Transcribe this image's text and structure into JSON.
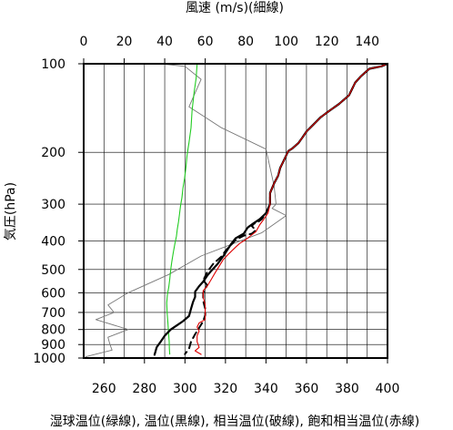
{
  "chart_data": {
    "type": "line",
    "title": "",
    "top_axis": {
      "label": "風速 (m/s)(細線)",
      "ticks": [
        0,
        20,
        40,
        60,
        80,
        100,
        120,
        140
      ],
      "range": [
        0,
        150
      ]
    },
    "bottom_axis": {
      "label": "湿球温位(緑線), 温位(黒線), 相当温位(破線), 飽和相当温位(赤線)",
      "ticks": [
        260,
        280,
        300,
        320,
        340,
        360,
        380,
        400
      ],
      "range": [
        250,
        400
      ]
    },
    "y_axis": {
      "label": "気圧(hPa)",
      "scale": "log",
      "reversed": true,
      "range": [
        100,
        1000
      ],
      "ticks": [
        100,
        200,
        300,
        400,
        500,
        600,
        700,
        800,
        900,
        1000
      ]
    },
    "grid": true,
    "colors": {
      "wind": "#777777",
      "wet_bulb": "#22cc22",
      "potential": "#000000",
      "equivalent": "#000000",
      "saturated": "#dd0000"
    },
    "series": [
      {
        "key": "wind",
        "axis": "top",
        "style": "thin",
        "points": [
          [
            38,
            100
          ],
          [
            50,
            102
          ],
          [
            58,
            113
          ],
          [
            52,
            140
          ],
          [
            68,
            165
          ],
          [
            90,
            195
          ],
          [
            94,
            260
          ],
          [
            95,
            300
          ],
          [
            93,
            310
          ],
          [
            100,
            328
          ],
          [
            88,
            375
          ],
          [
            58,
            450
          ],
          [
            42,
            520
          ],
          [
            22,
            600
          ],
          [
            12,
            660
          ],
          [
            15,
            700
          ],
          [
            6,
            740
          ],
          [
            22,
            800
          ],
          [
            12,
            850
          ],
          [
            13,
            900
          ],
          [
            14,
            940
          ],
          [
            1,
            990
          ]
        ]
      },
      {
        "key": "wet_bulb",
        "axis": "bottom",
        "style": "solid",
        "points": [
          [
            306,
            100
          ],
          [
            305.5,
            112
          ],
          [
            304.5,
            125
          ],
          [
            303.5,
            145
          ],
          [
            303,
            165
          ],
          [
            302,
            185
          ],
          [
            301,
            205
          ],
          [
            300.5,
            225
          ],
          [
            299.8,
            245
          ],
          [
            299,
            265
          ],
          [
            298.5,
            285
          ],
          [
            297.8,
            305
          ],
          [
            297.3,
            325
          ],
          [
            296.8,
            345
          ],
          [
            296.2,
            365
          ],
          [
            295.8,
            385
          ],
          [
            295,
            410
          ],
          [
            294.2,
            440
          ],
          [
            293.5,
            470
          ],
          [
            293,
            500
          ],
          [
            292.5,
            540
          ],
          [
            292,
            575
          ],
          [
            291.3,
            610
          ],
          [
            291,
            650
          ],
          [
            291.2,
            700
          ],
          [
            291.6,
            760
          ],
          [
            291.9,
            820
          ],
          [
            292.2,
            880
          ],
          [
            292.3,
            930
          ],
          [
            292.5,
            970
          ]
        ]
      },
      {
        "key": "potential",
        "axis": "bottom",
        "style": "solid",
        "points": [
          [
            400,
            100
          ],
          [
            397,
            102
          ],
          [
            391,
            104
          ],
          [
            387,
            110
          ],
          [
            384,
            116
          ],
          [
            381,
            128
          ],
          [
            376,
            137
          ],
          [
            371,
            145
          ],
          [
            367,
            152
          ],
          [
            363,
            162
          ],
          [
            360,
            170
          ],
          [
            358,
            178
          ],
          [
            356,
            186
          ],
          [
            353,
            194
          ],
          [
            351,
            198
          ],
          [
            349,
            212
          ],
          [
            347,
            226
          ],
          [
            346,
            240
          ],
          [
            344,
            255
          ],
          [
            342,
            275
          ],
          [
            342,
            300
          ],
          [
            340,
            322
          ],
          [
            337,
            337
          ],
          [
            334,
            348
          ],
          [
            331,
            360
          ],
          [
            329,
            378
          ],
          [
            325,
            392
          ],
          [
            323,
            408
          ],
          [
            321,
            428
          ],
          [
            319,
            450
          ],
          [
            316,
            480
          ],
          [
            313,
            505
          ],
          [
            311,
            525
          ],
          [
            309,
            550
          ],
          [
            307,
            570
          ],
          [
            305,
            595
          ],
          [
            305,
            620
          ],
          [
            304,
            645
          ],
          [
            303,
            680
          ],
          [
            302,
            720
          ],
          [
            299,
            750
          ],
          [
            296,
            775
          ],
          [
            293,
            800
          ],
          [
            290,
            840
          ],
          [
            288,
            880
          ],
          [
            286,
            920
          ],
          [
            285,
            975
          ]
        ]
      },
      {
        "key": "equivalent",
        "axis": "bottom",
        "style": "dashed",
        "points": [
          [
            400,
            100
          ],
          [
            397,
            102
          ],
          [
            391,
            104
          ],
          [
            387,
            110
          ],
          [
            384,
            116
          ],
          [
            381,
            128
          ],
          [
            376,
            137
          ],
          [
            371,
            145
          ],
          [
            367,
            152
          ],
          [
            363,
            162
          ],
          [
            360,
            170
          ],
          [
            358,
            178
          ],
          [
            356,
            186
          ],
          [
            353,
            194
          ],
          [
            351,
            198
          ],
          [
            349,
            212
          ],
          [
            347,
            226
          ],
          [
            346,
            240
          ],
          [
            344,
            255
          ],
          [
            342,
            275
          ],
          [
            342,
            300
          ],
          [
            340,
            322
          ],
          [
            338,
            337
          ],
          [
            336,
            345
          ],
          [
            334,
            350
          ],
          [
            333,
            356
          ],
          [
            335,
            368
          ],
          [
            333,
            378
          ],
          [
            329,
            384
          ],
          [
            325,
            397
          ],
          [
            322,
            418
          ],
          [
            320,
            432
          ],
          [
            318,
            452
          ],
          [
            314,
            478
          ],
          [
            311,
            510
          ],
          [
            309,
            545
          ],
          [
            311,
            565
          ],
          [
            309,
            600
          ],
          [
            309,
            640
          ],
          [
            310,
            680
          ],
          [
            310,
            715
          ],
          [
            309,
            750
          ],
          [
            307,
            790
          ],
          [
            305,
            830
          ],
          [
            303,
            880
          ],
          [
            302,
            930
          ],
          [
            300,
            970
          ]
        ]
      },
      {
        "key": "saturated",
        "axis": "bottom",
        "style": "solid",
        "points": [
          [
            400,
            100
          ],
          [
            397,
            102
          ],
          [
            391,
            104
          ],
          [
            387,
            110
          ],
          [
            384,
            116
          ],
          [
            381,
            128
          ],
          [
            376,
            137
          ],
          [
            371,
            145
          ],
          [
            367,
            152
          ],
          [
            363,
            162
          ],
          [
            360,
            170
          ],
          [
            358,
            178
          ],
          [
            356,
            186
          ],
          [
            353,
            194
          ],
          [
            351,
            198
          ],
          [
            349,
            212
          ],
          [
            347,
            226
          ],
          [
            346,
            240
          ],
          [
            344,
            255
          ],
          [
            342,
            275
          ],
          [
            342,
            300
          ],
          [
            341,
            322
          ],
          [
            339,
            337
          ],
          [
            337,
            352
          ],
          [
            335,
            372
          ],
          [
            332,
            386
          ],
          [
            330,
            396
          ],
          [
            327,
            408
          ],
          [
            325,
            420
          ],
          [
            322,
            440
          ],
          [
            319,
            462
          ],
          [
            317,
            486
          ],
          [
            315,
            512
          ],
          [
            313,
            540
          ],
          [
            311,
            570
          ],
          [
            309,
            590
          ],
          [
            309,
            620
          ],
          [
            310,
            660
          ],
          [
            310,
            705
          ],
          [
            310,
            740
          ],
          [
            307,
            760
          ],
          [
            306,
            785
          ],
          [
            307,
            810
          ],
          [
            306,
            840
          ],
          [
            306,
            880
          ],
          [
            307,
            920
          ],
          [
            305,
            945
          ],
          [
            308,
            972
          ]
        ]
      }
    ]
  }
}
